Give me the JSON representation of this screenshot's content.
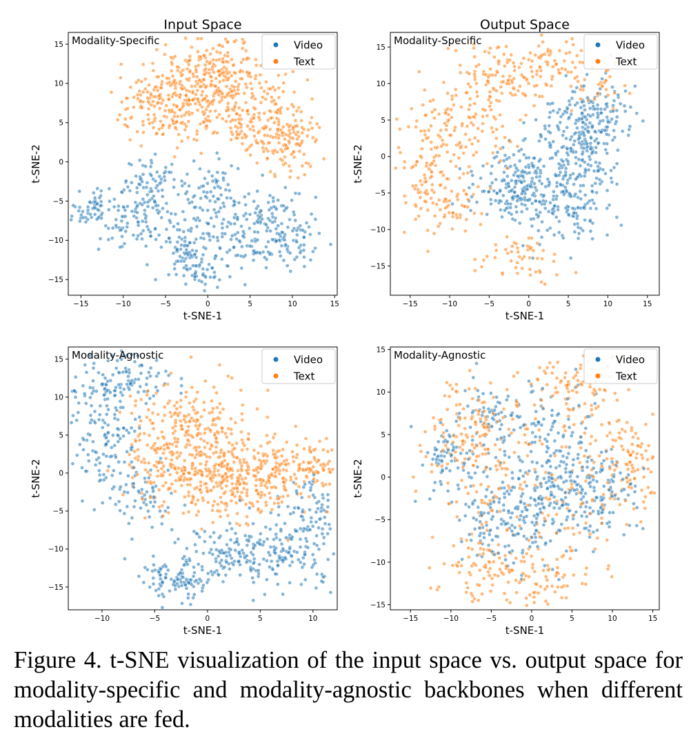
{
  "column_titles": [
    "Input Space",
    "Output Space"
  ],
  "caption": "Figure 4. t-SNE visualization of the input space vs. output space for modality-specific and modality-agnostic backbones when different modalities are fed.",
  "colors": {
    "video": "#1f77b4",
    "text": "#ff7f0e"
  },
  "chart_data": [
    {
      "type": "scatter",
      "title": "Input Space",
      "annotation": "Modality-Specific",
      "xlabel": "t-SNE-1",
      "ylabel": "t-SNE-2",
      "xlim": [
        -16.5,
        15.3
      ],
      "ylim": [
        -17.0,
        16.5
      ],
      "xticks": [
        -15,
        -10,
        -5,
        0,
        5,
        10,
        15
      ],
      "yticks": [
        -15,
        -10,
        -5,
        0,
        5,
        10,
        15
      ],
      "legend": "top-right",
      "series": [
        {
          "name": "Video",
          "color": "#1f77b4",
          "n": 620,
          "clusters": [
            {
              "c": [
                -13,
                -6
              ],
              "s": [
                1.8,
                1.8
              ],
              "w": 1.4
            },
            {
              "c": [
                -8,
                -7
              ],
              "s": [
                1.8,
                2.0
              ],
              "w": 1.3
            },
            {
              "c": [
                -6,
                -2.5
              ],
              "s": [
                1.8,
                1.5
              ],
              "w": 1.0
            },
            {
              "c": [
                -1.5,
                -10
              ],
              "s": [
                2.0,
                2.0
              ],
              "w": 1.6
            },
            {
              "c": [
                -1,
                -13.5
              ],
              "s": [
                1.8,
                1.2
              ],
              "w": 1.0
            },
            {
              "c": [
                0.5,
                -4
              ],
              "s": [
                1.8,
                2.0
              ],
              "w": 1.1
            },
            {
              "c": [
                6,
                -7
              ],
              "s": [
                2.5,
                2.2
              ],
              "w": 1.5
            },
            {
              "c": [
                9.5,
                -9.5
              ],
              "s": [
                2.2,
                1.8
              ],
              "w": 1.3
            },
            {
              "c": [
                5,
                -11
              ],
              "s": [
                1.8,
                1.0
              ],
              "w": 0.6
            }
          ]
        },
        {
          "name": "Text",
          "color": "#ff7f0e",
          "n": 700,
          "clusters": [
            {
              "c": [
                -5,
                7
              ],
              "s": [
                3.0,
                2.5
              ],
              "w": 1.5
            },
            {
              "c": [
                0,
                9
              ],
              "s": [
                3.0,
                2.8
              ],
              "w": 1.6
            },
            {
              "c": [
                5,
                7
              ],
              "s": [
                3.0,
                3.0
              ],
              "w": 1.5
            },
            {
              "c": [
                9.5,
                2.5
              ],
              "s": [
                2.0,
                2.0
              ],
              "w": 1.0
            },
            {
              "c": [
                1,
                12.5
              ],
              "s": [
                3.0,
                1.5
              ],
              "w": 0.7
            }
          ]
        }
      ]
    },
    {
      "type": "scatter",
      "title": "Output Space",
      "annotation": "Modality-Specific",
      "xlabel": "t-SNE-1",
      "ylabel": "t-SNE-2",
      "xlim": [
        -17.5,
        16.5
      ],
      "ylim": [
        -19.0,
        17.0
      ],
      "xticks": [
        -15,
        -10,
        -5,
        0,
        5,
        10,
        15
      ],
      "yticks": [
        -15,
        -10,
        -5,
        0,
        5,
        10,
        15
      ],
      "legend": "top-right",
      "series": [
        {
          "name": "Video",
          "color": "#1f77b4",
          "n": 620,
          "clusters": [
            {
              "c": [
                6,
                2
              ],
              "s": [
                3.0,
                3.5
              ],
              "w": 1.6
            },
            {
              "c": [
                -2,
                -4
              ],
              "s": [
                2.5,
                2.5
              ],
              "w": 1.3
            },
            {
              "c": [
                4,
                -6
              ],
              "s": [
                3.0,
                2.5
              ],
              "w": 1.3
            },
            {
              "c": [
                8,
                5
              ],
              "s": [
                2.5,
                2.5
              ],
              "w": 0.8
            }
          ]
        },
        {
          "name": "Text",
          "color": "#ff7f0e",
          "n": 500,
          "clusters": [
            {
              "c": [
                -13,
                -2
              ],
              "s": [
                2.0,
                4.0
              ],
              "w": 1.2
            },
            {
              "c": [
                -8,
                5
              ],
              "s": [
                3.0,
                3.5
              ],
              "w": 1.4
            },
            {
              "c": [
                -3,
                11
              ],
              "s": [
                3.0,
                2.5
              ],
              "w": 1.0
            },
            {
              "c": [
                3,
                13
              ],
              "s": [
                2.5,
                2.5
              ],
              "w": 0.8
            },
            {
              "c": [
                -9,
                -7
              ],
              "s": [
                2.0,
                2.0
              ],
              "w": 0.5
            },
            {
              "c": [
                -1,
                -14
              ],
              "s": [
                3.0,
                1.5
              ],
              "w": 0.6
            },
            {
              "c": [
                9,
                10
              ],
              "s": [
                2.5,
                2.0
              ],
              "w": 0.4
            }
          ]
        }
      ]
    },
    {
      "type": "scatter",
      "title": "",
      "annotation": "Modality-Agnostic",
      "xlabel": "t-SNE-1",
      "ylabel": "t-SNE-2",
      "xlim": [
        -13.2,
        12.3
      ],
      "ylim": [
        -18.0,
        16.6
      ],
      "xticks": [
        -10,
        -5,
        0,
        5,
        10
      ],
      "yticks": [
        -15,
        -10,
        -5,
        0,
        5,
        10,
        15
      ],
      "legend": "top-right",
      "series": [
        {
          "name": "Video",
          "color": "#1f77b4",
          "n": 720,
          "clusters": [
            {
              "c": [
                -8,
                12
              ],
              "s": [
                2.5,
                2.0
              ],
              "w": 1.3
            },
            {
              "c": [
                -10,
                4
              ],
              "s": [
                1.8,
                3.5
              ],
              "w": 1.3
            },
            {
              "c": [
                -6,
                -3
              ],
              "s": [
                1.8,
                2.5
              ],
              "w": 0.7
            },
            {
              "c": [
                -3,
                -14
              ],
              "s": [
                1.5,
                1.5
              ],
              "w": 1.1
            },
            {
              "c": [
                2,
                -11
              ],
              "s": [
                2.5,
                1.8
              ],
              "w": 1.3
            },
            {
              "c": [
                7,
                -10
              ],
              "s": [
                3.0,
                2.5
              ],
              "w": 1.6
            },
            {
              "c": [
                10,
                -5
              ],
              "s": [
                1.5,
                2.0
              ],
              "w": 0.7
            }
          ]
        },
        {
          "name": "Text",
          "color": "#ff7f0e",
          "n": 760,
          "clusters": [
            {
              "c": [
                -1,
                6
              ],
              "s": [
                3.0,
                3.5
              ],
              "w": 1.5
            },
            {
              "c": [
                1,
                -1
              ],
              "s": [
                3.0,
                2.5
              ],
              "w": 1.5
            },
            {
              "c": [
                6,
                0
              ],
              "s": [
                3.0,
                2.5
              ],
              "w": 1.3
            },
            {
              "c": [
                -4,
                1
              ],
              "s": [
                2.0,
                2.5
              ],
              "w": 0.7
            },
            {
              "c": [
                10,
                1
              ],
              "s": [
                1.5,
                1.5
              ],
              "w": 0.4
            }
          ]
        }
      ]
    },
    {
      "type": "scatter",
      "title": "",
      "annotation": "Modality-Agnostic",
      "xlabel": "t-SNE-1",
      "ylabel": "t-SNE-2",
      "xlim": [
        -17.5,
        15.8
      ],
      "ylim": [
        -15.6,
        15.3
      ],
      "xticks": [
        -15,
        -10,
        -5,
        0,
        5,
        10,
        15
      ],
      "yticks": [
        -15,
        -10,
        -5,
        0,
        5,
        10,
        15
      ],
      "legend": "top-right",
      "series": [
        {
          "name": "Video",
          "color": "#1f77b4",
          "n": 620,
          "clusters": [
            {
              "c": [
                3,
                -2
              ],
              "s": [
                3.5,
                3.0
              ],
              "w": 1.5
            },
            {
              "c": [
                -3,
                -5
              ],
              "s": [
                3.0,
                3.0
              ],
              "w": 1.3
            },
            {
              "c": [
                -10,
                2
              ],
              "s": [
                2.0,
                2.5
              ],
              "w": 0.7
            },
            {
              "c": [
                8,
                -2
              ],
              "s": [
                2.5,
                2.5
              ],
              "w": 0.9
            },
            {
              "c": [
                2,
                6
              ],
              "s": [
                3.0,
                2.5
              ],
              "w": 0.7
            },
            {
              "c": [
                -5,
                7
              ],
              "s": [
                2.0,
                2.0
              ],
              "w": 0.5
            }
          ]
        },
        {
          "name": "Text",
          "color": "#ff7f0e",
          "n": 620,
          "clusters": [
            {
              "c": [
                0,
                0
              ],
              "s": [
                7.0,
                6.0
              ],
              "w": 1.5
            },
            {
              "c": [
                -8,
                5
              ],
              "s": [
                3.0,
                3.0
              ],
              "w": 0.9
            },
            {
              "c": [
                5,
                11
              ],
              "s": [
                3.0,
                2.0
              ],
              "w": 0.6
            },
            {
              "c": [
                12,
                1
              ],
              "s": [
                2.0,
                3.0
              ],
              "w": 0.7
            },
            {
              "c": [
                -6,
                -11
              ],
              "s": [
                3.0,
                2.0
              ],
              "w": 0.6
            },
            {
              "c": [
                2,
                -12
              ],
              "s": [
                3.0,
                1.5
              ],
              "w": 0.5
            }
          ]
        }
      ]
    }
  ]
}
